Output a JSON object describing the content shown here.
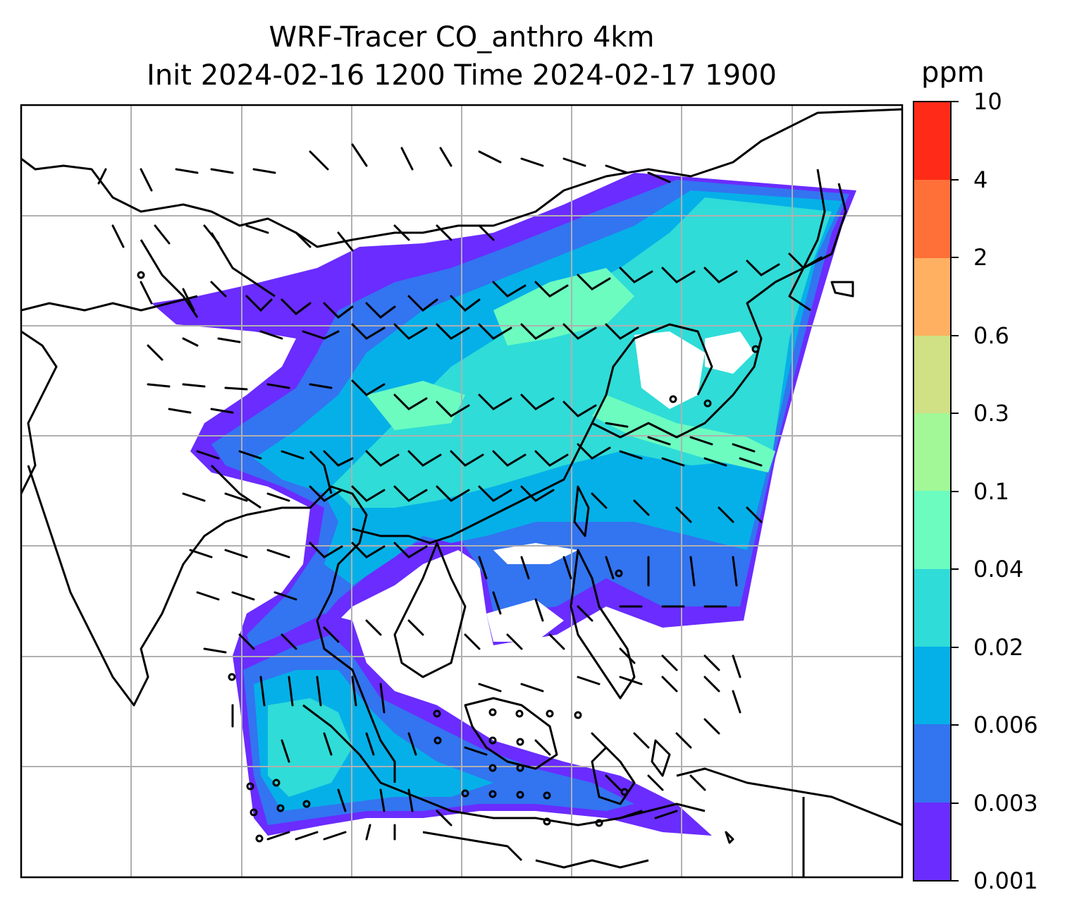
{
  "title": {
    "line1": "WRF-Tracer CO_anthro 4km",
    "line2": "Init 2024-02-16 1200 Time 2024-02-17 1900"
  },
  "colorbar": {
    "unit": "ppm",
    "levels": [
      "0.001",
      "0.003",
      "0.006",
      "0.02",
      "0.04",
      "0.1",
      "0.3",
      "0.6",
      "2",
      "4",
      "10"
    ],
    "colors": [
      "#6a2cff",
      "#3374f0",
      "#05b0e8",
      "#2fdcd8",
      "#6cfcc0",
      "#a2f896",
      "#d0e085",
      "#ffb060",
      "#ff7038",
      "#ff2b18"
    ]
  },
  "legend_colors": {
    "land": "#ffffff",
    "coast": "#000000",
    "grid": "#b0b0b0"
  }
}
